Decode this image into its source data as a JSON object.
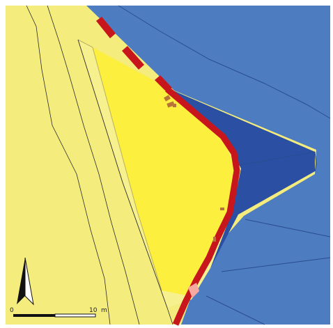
{
  "map": {
    "colors": {
      "background": "#ffffff",
      "land": "#f4ec7d",
      "parcel_highlight": "#fdef3d",
      "parcel_outline": "#b9b160",
      "water_medium": "#4e7cc0",
      "water_dark": "#2b4fa3",
      "water_outline": "#2a4d8f",
      "boundary_red": "#c8161d",
      "boundary_pink": "#f5a9a0",
      "feature_brown": "#b87436",
      "hairline": "#2b2b2b"
    },
    "icons": {
      "north_arrow": "north-arrow-icon",
      "scale_bar": "scale-bar-icon"
    },
    "scale_bar": {
      "start_label": "0",
      "end_label": "10",
      "unit_label": "m"
    }
  }
}
